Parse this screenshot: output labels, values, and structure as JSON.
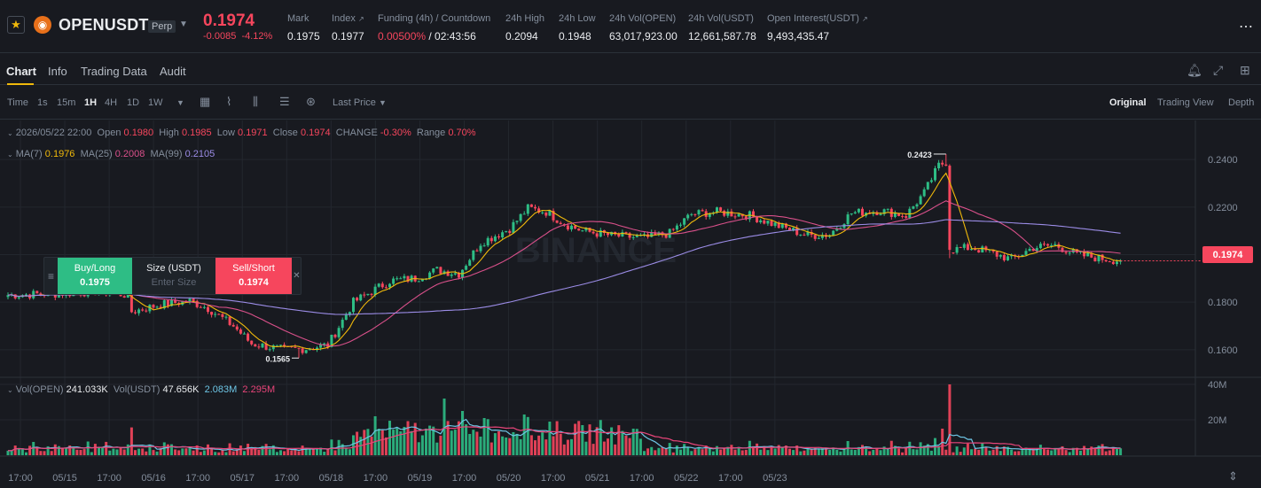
{
  "ticker": {
    "symbol": "OPENUSDT",
    "badge": "Perp",
    "last_price": "0.1974",
    "change": "-0.0085",
    "change_pct": "-4.12%",
    "stats": [
      {
        "label": "Mark",
        "value": "0.1975"
      },
      {
        "label": "Index",
        "value": "0.1977"
      },
      {
        "label": "Funding (4h) / Countdown",
        "value": "0.00500%",
        "value2": "/ 02:43:56"
      },
      {
        "label": "24h High",
        "value": "0.2094"
      },
      {
        "label": "24h Low",
        "value": "0.1948"
      },
      {
        "label": "24h Vol(OPEN)",
        "value": "63,017,923.00"
      },
      {
        "label": "24h Vol(USDT)",
        "value": "12,661,587.78"
      },
      {
        "label": "Open Interest(USDT)",
        "value": "9,493,435.47"
      }
    ]
  },
  "tabs": [
    "Chart",
    "Info",
    "Trading Data",
    "Audit"
  ],
  "toolbar": {
    "intervals": [
      "Time",
      "1s",
      "15m",
      "1H",
      "4H",
      "1D",
      "1W"
    ],
    "active_interval": "1H",
    "price_type": "Last Price",
    "views": [
      "Original",
      "Trading View",
      "Depth"
    ],
    "active_view": "Original"
  },
  "ohlc": {
    "date": "2026/05/22 22:00",
    "open_label": "Open",
    "open": "0.1980",
    "high_label": "High",
    "high": "0.1985",
    "low_label": "Low",
    "low": "0.1971",
    "close_label": "Close",
    "close": "0.1974",
    "change_label": "CHANGE",
    "change": "-0.30%",
    "range_label": "Range",
    "range": "0.70%"
  },
  "ma": {
    "ma7_label": "MA(7)",
    "ma7": "0.1976",
    "ma25_label": "MA(25)",
    "ma25": "0.2008",
    "ma99_label": "MA(99)",
    "ma99": "0.2105"
  },
  "vol": {
    "open_label": "Vol(OPEN)",
    "open": "241.033K",
    "usdt_label": "Vol(USDT)",
    "usdt": "47.656K",
    "ma1": "2.083M",
    "ma2": "2.295M"
  },
  "order_panel": {
    "buy_label": "Buy/Long",
    "buy_price": "0.1975",
    "size_label": "Size (USDT)",
    "size_placeholder": "Enter Size",
    "sell_label": "Sell/Short",
    "sell_price": "0.1974"
  },
  "current_price_tag": "0.1974",
  "watermark": "BINANCE",
  "colors": {
    "up": "#2ebd85",
    "down": "#f6465d",
    "ma7": "#f0b90b",
    "ma25": "#d9508a",
    "ma99": "#9b8ce6",
    "volma1": "#6ec6e6",
    "volma2": "#e8457a",
    "accent": "#f0b90b"
  },
  "chart_data": {
    "type": "candlestick",
    "price_axis": {
      "ticks": [
        "0.2400",
        "0.2200",
        "0.2000",
        "0.1800",
        "0.1600"
      ],
      "range": [
        0.1525,
        0.2475
      ]
    },
    "volume_axis": {
      "ticks": [
        "40M",
        "20M"
      ],
      "range": [
        0,
        42
      ]
    },
    "time_ticks": [
      "17:00",
      "05/15",
      "17:00",
      "05/16",
      "17:00",
      "05/17",
      "17:00",
      "05/18",
      "17:00",
      "05/19",
      "17:00",
      "05/20",
      "17:00",
      "05/21",
      "17:00",
      "05/22",
      "17:00",
      "05/23"
    ],
    "high_label": "0.2423",
    "low_label": "0.1565",
    "anchors": [
      [
        0,
        0.183
      ],
      [
        12,
        0.1835
      ],
      [
        25,
        0.1845
      ],
      [
        33,
        0.183
      ],
      [
        34,
        0.176
      ],
      [
        42,
        0.179
      ],
      [
        50,
        0.1805
      ],
      [
        55,
        0.1775
      ],
      [
        62,
        0.17
      ],
      [
        67,
        0.1625
      ],
      [
        76,
        0.16
      ],
      [
        82,
        0.1605
      ],
      [
        88,
        0.162
      ],
      [
        95,
        0.18
      ],
      [
        105,
        0.189
      ],
      [
        112,
        0.19
      ],
      [
        118,
        0.1935
      ],
      [
        124,
        0.192
      ],
      [
        130,
        0.205
      ],
      [
        138,
        0.211
      ],
      [
        143,
        0.2195
      ],
      [
        148,
        0.218
      ],
      [
        153,
        0.213
      ],
      [
        158,
        0.21
      ],
      [
        166,
        0.208
      ],
      [
        175,
        0.207
      ],
      [
        182,
        0.209
      ],
      [
        188,
        0.217
      ],
      [
        195,
        0.218
      ],
      [
        204,
        0.2165
      ],
      [
        212,
        0.212
      ],
      [
        220,
        0.208
      ],
      [
        226,
        0.2085
      ],
      [
        232,
        0.2175
      ],
      [
        240,
        0.2185
      ],
      [
        247,
        0.2165
      ],
      [
        252,
        0.226
      ],
      [
        256,
        0.2375
      ],
      [
        258,
        0.239
      ],
      [
        259,
        0.202
      ],
      [
        265,
        0.203
      ],
      [
        270,
        0.201
      ],
      [
        276,
        0.198
      ],
      [
        282,
        0.203
      ],
      [
        288,
        0.204
      ],
      [
        294,
        0.2
      ],
      [
        300,
        0.1985
      ],
      [
        306,
        0.1974
      ]
    ],
    "volume_spikes": [
      [
        101,
        22
      ],
      [
        120,
        32
      ],
      [
        125,
        25
      ],
      [
        131,
        21
      ],
      [
        142,
        23
      ],
      [
        149,
        19
      ],
      [
        158,
        17
      ],
      [
        257,
        15
      ],
      [
        259,
        40
      ]
    ]
  }
}
